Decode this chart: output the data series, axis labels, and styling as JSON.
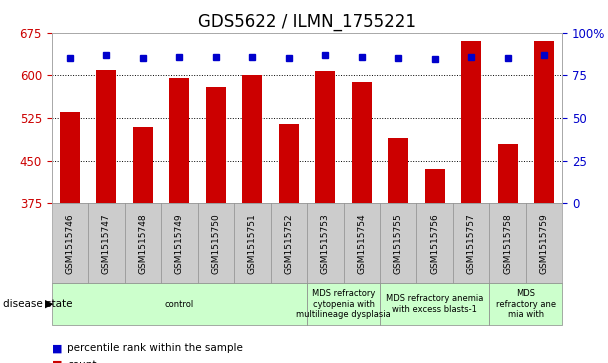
{
  "title": "GDS5622 / ILMN_1755221",
  "samples": [
    "GSM1515746",
    "GSM1515747",
    "GSM1515748",
    "GSM1515749",
    "GSM1515750",
    "GSM1515751",
    "GSM1515752",
    "GSM1515753",
    "GSM1515754",
    "GSM1515755",
    "GSM1515756",
    "GSM1515757",
    "GSM1515758",
    "GSM1515759"
  ],
  "counts": [
    535,
    610,
    510,
    595,
    580,
    601,
    515,
    608,
    588,
    490,
    435,
    660,
    480,
    660
  ],
  "percentile_y_left": [
    630,
    635,
    630,
    632,
    632,
    633,
    630,
    635,
    632,
    630,
    628,
    633,
    630,
    635
  ],
  "ylim_left": [
    375,
    675
  ],
  "ylim_right": [
    0,
    100
  ],
  "yticks_left": [
    375,
    450,
    525,
    600,
    675
  ],
  "yticks_right": [
    0,
    25,
    50,
    75,
    100
  ],
  "bar_color": "#cc0000",
  "dot_color": "#0000cc",
  "bg_color": "#ffffff",
  "bar_width": 0.55,
  "groups": [
    {
      "label": "control",
      "start": 0,
      "end": 7
    },
    {
      "label": "MDS refractory\ncytopenia with\nmultilineage dysplasia",
      "start": 7,
      "end": 9
    },
    {
      "label": "MDS refractory anemia\nwith excess blasts-1",
      "start": 9,
      "end": 12
    },
    {
      "label": "MDS\nrefractory ane\nmia with",
      "start": 12,
      "end": 14
    }
  ],
  "green_color": "#ccffcc",
  "gray_color": "#cccccc",
  "tick_color_left": "#cc0000",
  "tick_color_right": "#0000cc",
  "title_fontsize": 12,
  "tick_fontsize": 8.5,
  "sample_fontsize": 6.5,
  "group_fontsize": 6.0,
  "legend_fontsize": 7.5
}
